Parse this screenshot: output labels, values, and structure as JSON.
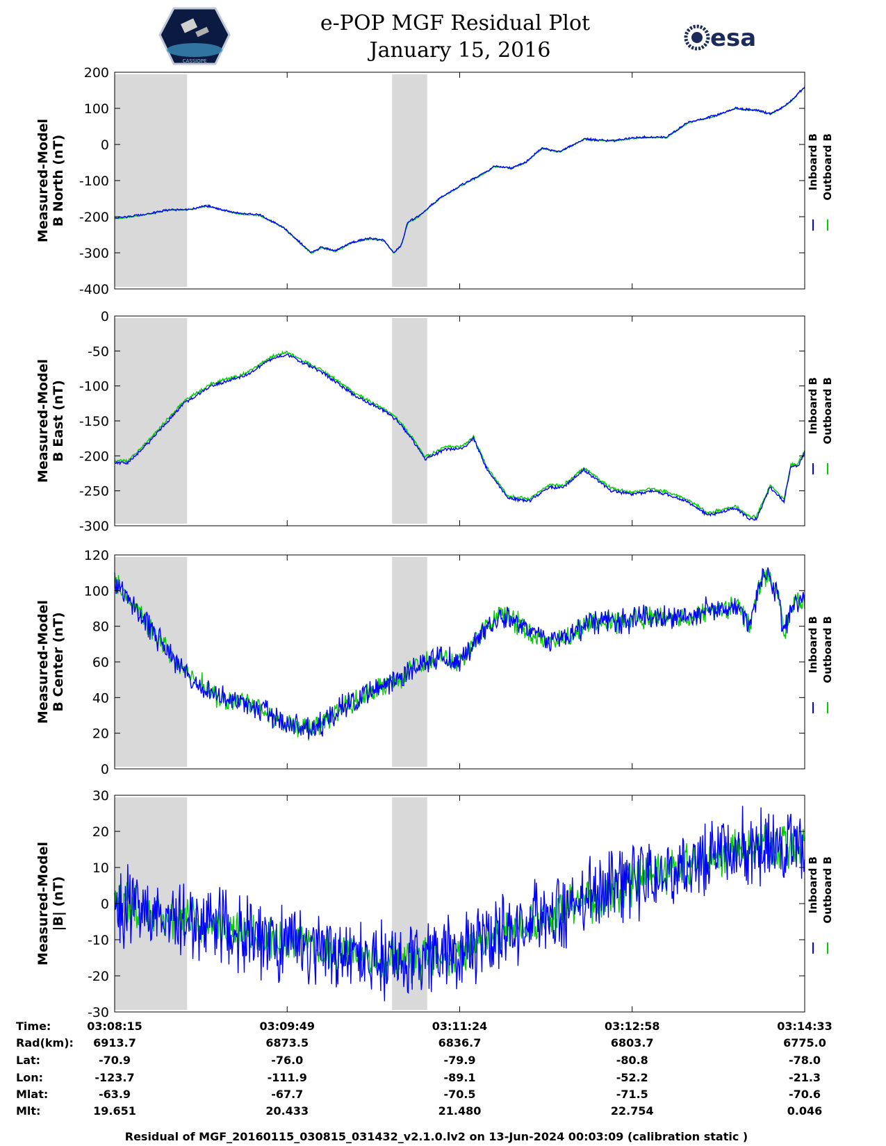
{
  "title": "e-POP MGF Residual Plot",
  "subtitle": "January 15, 2016",
  "logos": {
    "left": "cassiope-mission-logo",
    "left_text": "CASSIOPE",
    "right": "esa-logo",
    "right_text": "esa"
  },
  "colors": {
    "inboard": "#0000ff",
    "outboard": "#00cc00",
    "shade": "#d9d9d9"
  },
  "chart_data": [
    {
      "type": "line",
      "ylabel_lines": [
        "Measured-Model",
        "B North (nT)"
      ],
      "ylim": [
        -400,
        200
      ],
      "yticks": [
        -400,
        -300,
        -200,
        -100,
        0,
        100,
        200
      ],
      "legend": [
        "Inboard B",
        "Outboard B"
      ],
      "x": [
        0,
        0.04,
        0.08,
        0.105,
        0.135,
        0.175,
        0.21,
        0.245,
        0.265,
        0.285,
        0.3,
        0.32,
        0.345,
        0.37,
        0.39,
        0.405,
        0.415,
        0.425,
        0.44,
        0.47,
        0.5,
        0.54,
        0.55,
        0.575,
        0.595,
        0.61,
        0.62,
        0.63,
        0.645,
        0.66,
        0.68,
        0.72,
        0.76,
        0.8,
        0.83,
        0.87,
        0.9,
        0.93,
        0.95,
        0.97,
        0.98,
        0.99,
        1.0
      ],
      "series": [
        {
          "name": "Inboard B",
          "noise": 4,
          "values": [
            -205,
            -195,
            -180,
            -180,
            -170,
            -190,
            -195,
            -230,
            -265,
            -300,
            -285,
            -295,
            -270,
            -260,
            -265,
            -300,
            -280,
            -215,
            -200,
            -150,
            -115,
            -75,
            -60,
            -65,
            -50,
            -25,
            -10,
            -15,
            -20,
            -5,
            15,
            10,
            20,
            20,
            60,
            80,
            100,
            95,
            85,
            105,
            120,
            140,
            160
          ]
        },
        {
          "name": "Outboard B",
          "noise": 3,
          "offset": -1,
          "values": [
            -205,
            -195,
            -180,
            -180,
            -170,
            -190,
            -195,
            -230,
            -265,
            -300,
            -285,
            -295,
            -270,
            -260,
            -265,
            -300,
            -280,
            -215,
            -200,
            -150,
            -115,
            -75,
            -60,
            -65,
            -50,
            -25,
            -10,
            -15,
            -20,
            -5,
            15,
            10,
            20,
            20,
            60,
            80,
            100,
            95,
            85,
            105,
            120,
            140,
            160
          ]
        }
      ]
    },
    {
      "type": "line",
      "ylabel_lines": [
        "Measured-Model",
        "B East (nT)"
      ],
      "ylim": [
        -300,
        0
      ],
      "yticks": [
        -300,
        -250,
        -200,
        -150,
        -100,
        -50,
        0
      ],
      "legend": [
        "Inboard B",
        "Outboard B"
      ],
      "x": [
        0,
        0.02,
        0.05,
        0.1,
        0.14,
        0.19,
        0.23,
        0.25,
        0.3,
        0.35,
        0.39,
        0.41,
        0.43,
        0.45,
        0.48,
        0.5,
        0.51,
        0.52,
        0.54,
        0.57,
        0.6,
        0.63,
        0.65,
        0.68,
        0.7,
        0.72,
        0.75,
        0.78,
        0.8,
        0.83,
        0.86,
        0.88,
        0.9,
        0.92,
        0.93,
        0.95,
        0.97,
        0.98,
        0.99,
        1.0
      ],
      "series": [
        {
          "name": "Inboard B",
          "noise": 3,
          "values": [
            -210,
            -210,
            -180,
            -125,
            -100,
            -85,
            -60,
            -55,
            -80,
            -115,
            -135,
            -150,
            -175,
            -205,
            -190,
            -190,
            -185,
            -175,
            -220,
            -260,
            -265,
            -245,
            -245,
            -220,
            -235,
            -250,
            -255,
            -250,
            -255,
            -265,
            -285,
            -280,
            -275,
            -290,
            -290,
            -245,
            -265,
            -215,
            -215,
            -195
          ]
        },
        {
          "name": "Outboard B",
          "noise": 3,
          "offset": 3,
          "values": [
            -210,
            -210,
            -180,
            -125,
            -100,
            -85,
            -60,
            -55,
            -80,
            -115,
            -135,
            -150,
            -175,
            -205,
            -190,
            -190,
            -185,
            -175,
            -220,
            -260,
            -265,
            -245,
            -245,
            -220,
            -235,
            -250,
            -255,
            -250,
            -255,
            -265,
            -285,
            -280,
            -275,
            -290,
            -290,
            -245,
            -265,
            -215,
            -215,
            -195
          ]
        }
      ]
    },
    {
      "type": "line",
      "ylabel_lines": [
        "Measured-Model",
        "B Center (nT)"
      ],
      "ylim": [
        0,
        120
      ],
      "yticks": [
        0,
        20,
        40,
        60,
        80,
        100,
        120
      ],
      "legend": [
        "Inboard B",
        "Outboard B"
      ],
      "x": [
        0,
        0.02,
        0.06,
        0.1,
        0.15,
        0.2,
        0.25,
        0.28,
        0.3,
        0.33,
        0.38,
        0.42,
        0.4,
        0.45,
        0.47,
        0.5,
        0.53,
        0.55,
        0.57,
        0.6,
        0.63,
        0.68,
        0.7,
        0.73,
        0.76,
        0.8,
        0.84,
        0.86,
        0.88,
        0.9,
        0.9,
        0.92,
        0.94,
        0.96,
        0.97,
        0.98,
        1.0
      ],
      "series": [
        {
          "name": "Inboard B",
          "noise": 9,
          "values": [
            105,
            95,
            75,
            55,
            40,
            35,
            25,
            22,
            25,
            35,
            45,
            50,
            48,
            60,
            62,
            60,
            75,
            85,
            85,
            78,
            70,
            80,
            82,
            82,
            85,
            85,
            85,
            90,
            88,
            92,
            95,
            80,
            110,
            100,
            75,
            90,
            95
          ]
        },
        {
          "name": "Outboard B",
          "noise": 8,
          "offset": 0,
          "values": [
            105,
            95,
            75,
            55,
            40,
            35,
            25,
            22,
            25,
            35,
            45,
            50,
            48,
            60,
            62,
            60,
            75,
            85,
            85,
            78,
            70,
            80,
            82,
            82,
            85,
            85,
            85,
            90,
            88,
            92,
            95,
            80,
            110,
            100,
            75,
            90,
            95
          ]
        }
      ]
    },
    {
      "type": "line",
      "ylabel_lines": [
        "Measured-Model",
        "|B| (nT)"
      ],
      "ylim": [
        -30,
        30
      ],
      "yticks": [
        -30,
        -20,
        -10,
        0,
        10,
        20,
        30
      ],
      "legend": [
        "Inboard B",
        "Outboard B"
      ],
      "x": [
        0,
        0.1,
        0.2,
        0.3,
        0.4,
        0.45,
        0.5,
        0.6,
        0.7,
        0.8,
        0.9,
        0.95,
        1.0
      ],
      "series": [
        {
          "name": "Inboard B",
          "noise": 14,
          "values": [
            0,
            -4,
            -9,
            -13,
            -16,
            -15,
            -13,
            -6,
            2,
            9,
            15,
            16,
            16
          ]
        },
        {
          "name": "Outboard B",
          "noise": 8,
          "offset": 0,
          "values": [
            0,
            -4,
            -9,
            -13,
            -16,
            -15,
            -13,
            -6,
            2,
            9,
            15,
            16,
            16
          ]
        }
      ]
    }
  ],
  "shaded_ranges": [
    [
      0,
      0.105
    ],
    [
      0.402,
      0.453
    ]
  ],
  "ephemeris": {
    "labels": [
      "Time:",
      "Rad(km):",
      "Lat:",
      "Lon:",
      "Mlat:",
      "Mlt:"
    ],
    "columns": [
      [
        "03:08:15",
        "6913.7",
        "-70.9",
        "-123.7",
        "-63.9",
        "19.651"
      ],
      [
        "03:09:49",
        "6873.5",
        "-76.0",
        "-111.9",
        "-67.7",
        "20.433"
      ],
      [
        "03:11:24",
        "6836.7",
        "-79.9",
        "-89.1",
        "-70.5",
        "21.480"
      ],
      [
        "03:12:58",
        "6803.7",
        "-80.8",
        "-52.2",
        "-71.5",
        "22.754"
      ],
      [
        "03:14:33",
        "6775.0",
        "-78.0",
        "-21.3",
        "-70.6",
        "0.046"
      ]
    ]
  },
  "footer": "Residual of MGF_20160115_030815_031432_v2.1.0.lv2 on 13-Jun-2024 00:03:09 (calibration static )"
}
